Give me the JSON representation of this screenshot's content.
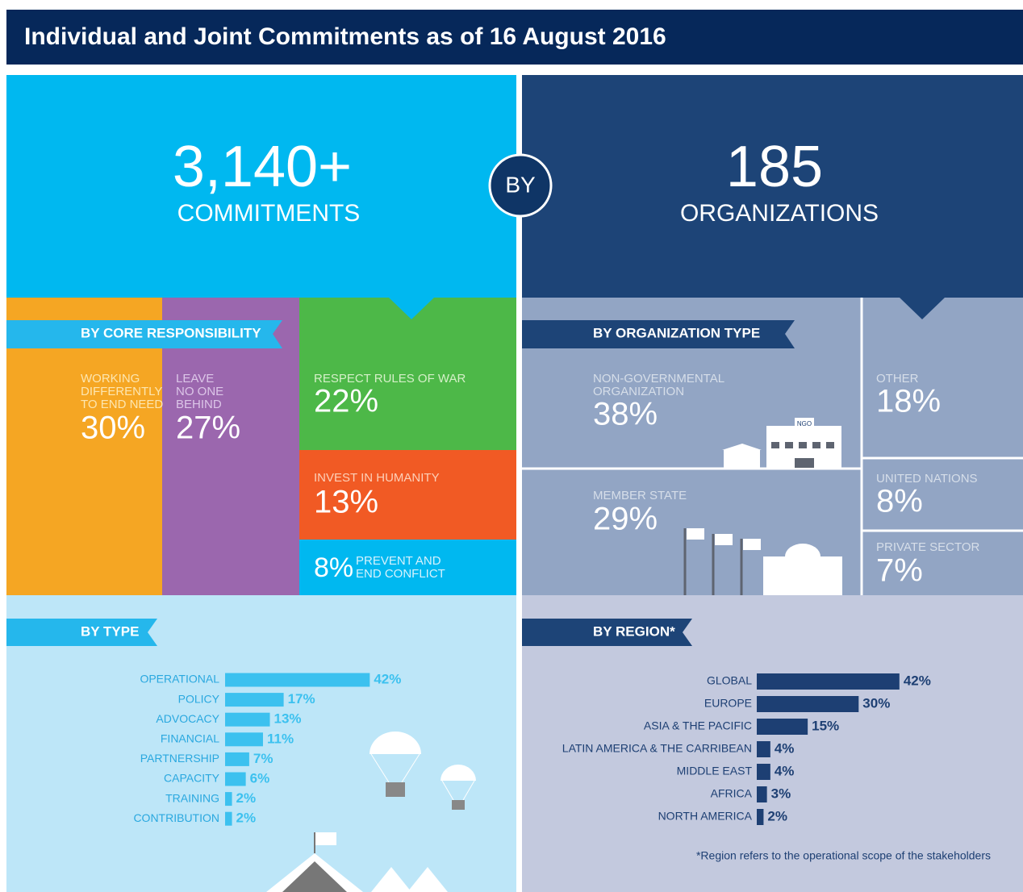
{
  "header": {
    "title": "Individual and Joint Commitments as of 16 August 2016"
  },
  "hero": {
    "commitments": {
      "value": "3,140+",
      "label": "COMMITMENTS"
    },
    "connector": "BY",
    "organizations": {
      "value": "185",
      "label": "ORGANIZATIONS"
    }
  },
  "core_responsibility": {
    "title": "BY CORE RESPONSIBILITY",
    "items": [
      {
        "label": [
          "WORKING",
          "DIFFERENTLY",
          "TO END NEED"
        ],
        "value": "30%"
      },
      {
        "label": [
          "LEAVE",
          "NO ONE",
          "BEHIND"
        ],
        "value": "27%"
      },
      {
        "label": [
          "RESPECT RULES OF WAR"
        ],
        "value": "22%"
      },
      {
        "label": [
          "INVEST IN HUMANITY"
        ],
        "value": "13%"
      },
      {
        "label": [
          "PREVENT AND",
          "END CONFLICT"
        ],
        "value": "8%"
      }
    ]
  },
  "organization_type": {
    "title": "BY ORGANIZATION TYPE",
    "items": [
      {
        "label": [
          "NON-GOVERNMENTAL",
          "ORGANIZATION"
        ],
        "value": "38%",
        "icon_text": "NGO"
      },
      {
        "label": [
          "MEMBER STATE"
        ],
        "value": "29%"
      },
      {
        "label": [
          "OTHER"
        ],
        "value": "18%"
      },
      {
        "label": [
          "UNITED NATIONS"
        ],
        "value": "8%"
      },
      {
        "label": [
          "PRIVATE SECTOR"
        ],
        "value": "7%"
      }
    ]
  },
  "chart_data": [
    {
      "type": "bar",
      "orientation": "horizontal",
      "title": "BY TYPE",
      "color": "#3cc1ef",
      "categories": [
        "OPERATIONAL",
        "POLICY",
        "ADVOCACY",
        "FINANCIAL",
        "PARTNERSHIP",
        "CAPACITY",
        "TRAINING",
        "CONTRIBUTION"
      ],
      "values": [
        42,
        17,
        13,
        11,
        7,
        6,
        2,
        2
      ],
      "value_labels": [
        "42%",
        "17%",
        "13%",
        "11%",
        "7%",
        "6%",
        "2%",
        "2%"
      ]
    },
    {
      "type": "bar",
      "orientation": "horizontal",
      "title": "BY REGION*",
      "color": "#1d3f73",
      "categories": [
        "GLOBAL",
        "EUROPE",
        "ASIA & THE PACIFIC",
        "LATIN AMERICA & THE CARRIBEAN",
        "MIDDLE EAST",
        "AFRICA",
        "NORTH AMERICA"
      ],
      "values": [
        42,
        30,
        15,
        4,
        4,
        3,
        2
      ],
      "value_labels": [
        "42%",
        "30%",
        "15%",
        "4%",
        "4%",
        "3%",
        "2%"
      ],
      "footnote": "*Region refers to the operational scope of the stakeholders"
    }
  ]
}
